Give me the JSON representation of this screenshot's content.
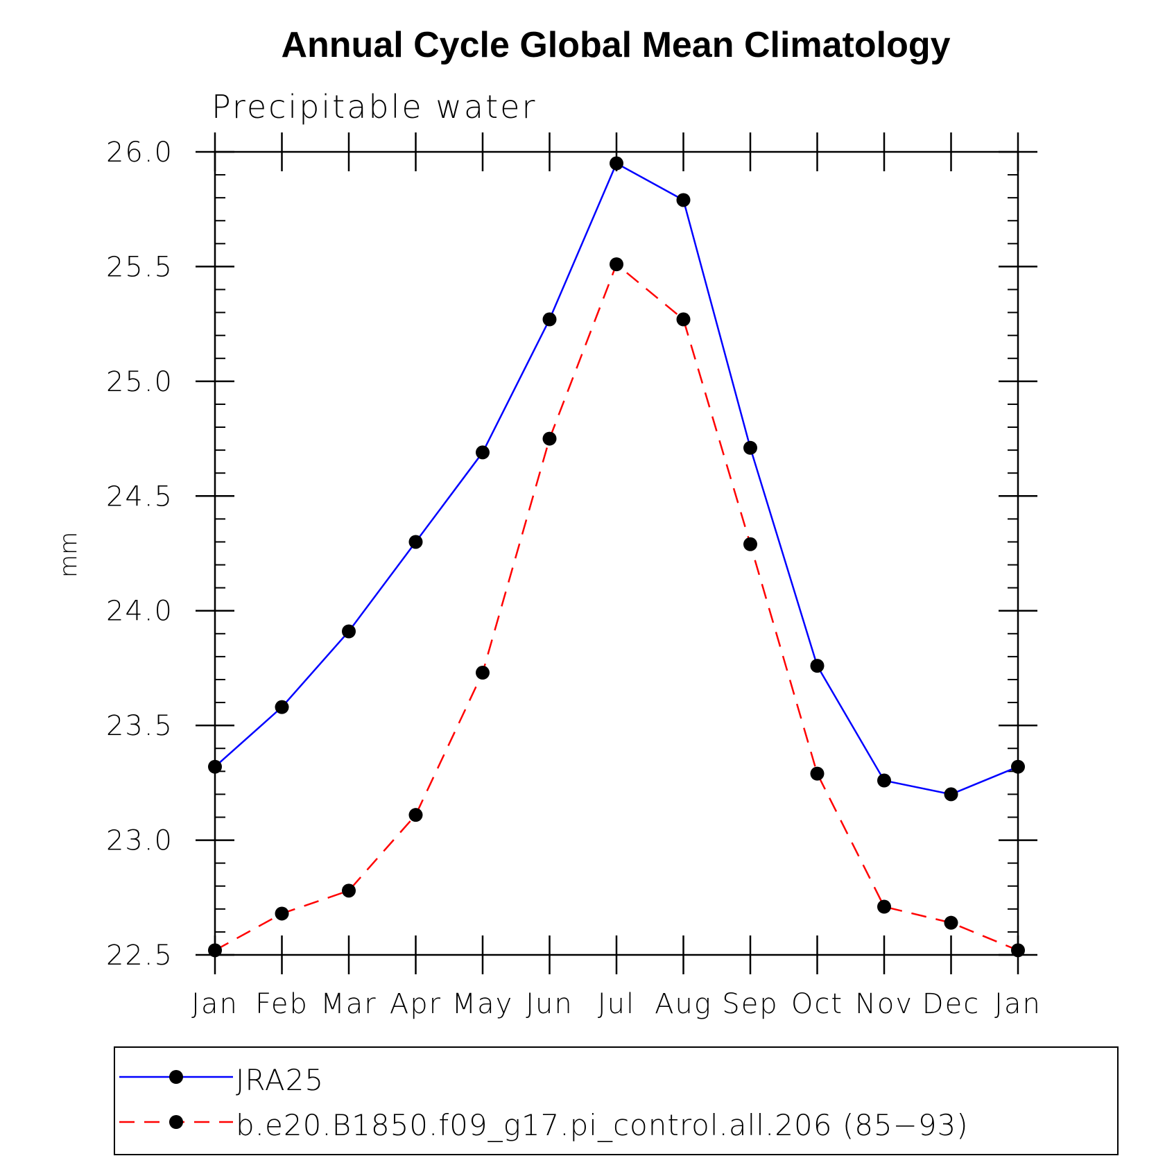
{
  "chart_data": {
    "type": "line",
    "title": "Annual Cycle Global Mean Climatology",
    "subtitle": "Precipitable water",
    "xlabel": "",
    "ylabel": "mm",
    "categories": [
      "Jan",
      "Feb",
      "Mar",
      "Apr",
      "May",
      "Jun",
      "Jul",
      "Aug",
      "Sep",
      "Oct",
      "Nov",
      "Dec",
      "Jan"
    ],
    "ylim": [
      22.5,
      26.0
    ],
    "yticks": [
      "22.5",
      "23.0",
      "23.5",
      "24.0",
      "24.5",
      "25.0",
      "25.5",
      "26.0"
    ],
    "grid": false,
    "legend_position": "bottom",
    "series": [
      {
        "name": "JRA25",
        "color": "#0000ff",
        "line_style": "solid",
        "marker": "filled-circle",
        "values": [
          23.32,
          23.58,
          23.91,
          24.3,
          24.69,
          25.27,
          25.95,
          25.79,
          24.71,
          23.76,
          23.26,
          23.2,
          23.32
        ]
      },
      {
        "name": "b.e20.B1850.f09_g17.pi_control.all.206 (85−93)",
        "color": "#ff0000",
        "line_style": "dashed",
        "marker": "filled-circle",
        "values": [
          22.52,
          22.68,
          22.78,
          23.11,
          23.73,
          24.75,
          25.51,
          25.27,
          24.29,
          23.29,
          22.71,
          22.64,
          22.52
        ]
      }
    ]
  }
}
